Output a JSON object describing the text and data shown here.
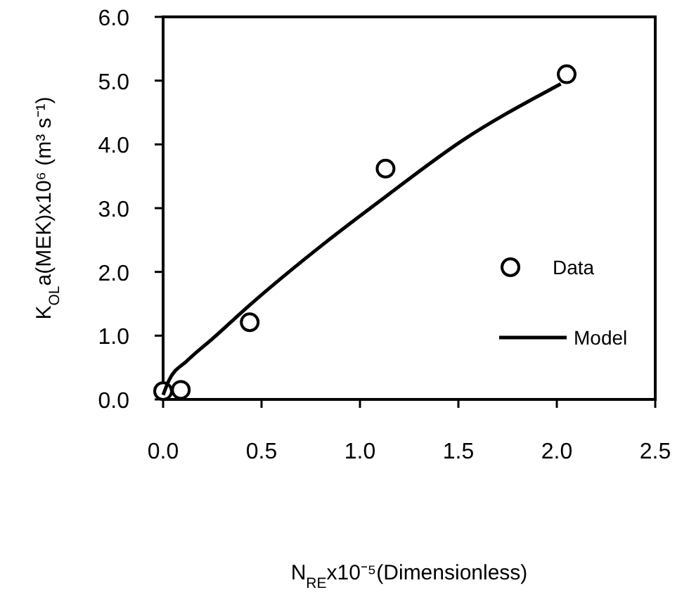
{
  "chart_data": {
    "type": "scatter",
    "xlabel": "N$_{RE}$x10⁻⁵(Dimensionless)",
    "ylabel": "K$_{OL}$a(MEK)x10⁶ (m³ s⁻¹)",
    "xlim": [
      0,
      2.5
    ],
    "ylim": [
      0,
      6
    ],
    "xticks": [
      {
        "value": 0,
        "label": "0.0"
      },
      {
        "value": 0.5,
        "label": "0.5"
      },
      {
        "value": 1,
        "label": "1.0"
      },
      {
        "value": 1.5,
        "label": "1.5"
      },
      {
        "value": 2,
        "label": "2.0"
      },
      {
        "value": 2.5,
        "label": "2.5"
      }
    ],
    "yticks": [
      {
        "value": 0,
        "label": "0.0"
      },
      {
        "value": 1,
        "label": "1.0"
      },
      {
        "value": 2,
        "label": "2.0"
      },
      {
        "value": 3,
        "label": "3.0"
      },
      {
        "value": 4,
        "label": "4.0"
      },
      {
        "value": 5,
        "label": "5.0"
      },
      {
        "value": 6,
        "label": "6.0"
      }
    ],
    "legend": "right",
    "grid": false,
    "series": [
      {
        "name": "Data",
        "marker": "circle",
        "color": "#000000",
        "x": [
          0,
          0.09,
          0.44,
          1.13,
          2.05
        ],
        "values": [
          0.13,
          0.15,
          1.21,
          3.62,
          5.1
        ]
      },
      {
        "name": "Model",
        "type": "line",
        "marker": "none",
        "line_style": "solid",
        "color": "#000000",
        "x": [
          0,
          0.03,
          0.12,
          0.25,
          0.44,
          0.82,
          1.13,
          1.52,
          1.99,
          2.02
        ],
        "values": [
          0.07,
          0.3,
          0.6,
          0.95,
          1.48,
          2.45,
          3.18,
          4.06,
          4.9,
          4.95
        ]
      }
    ]
  }
}
